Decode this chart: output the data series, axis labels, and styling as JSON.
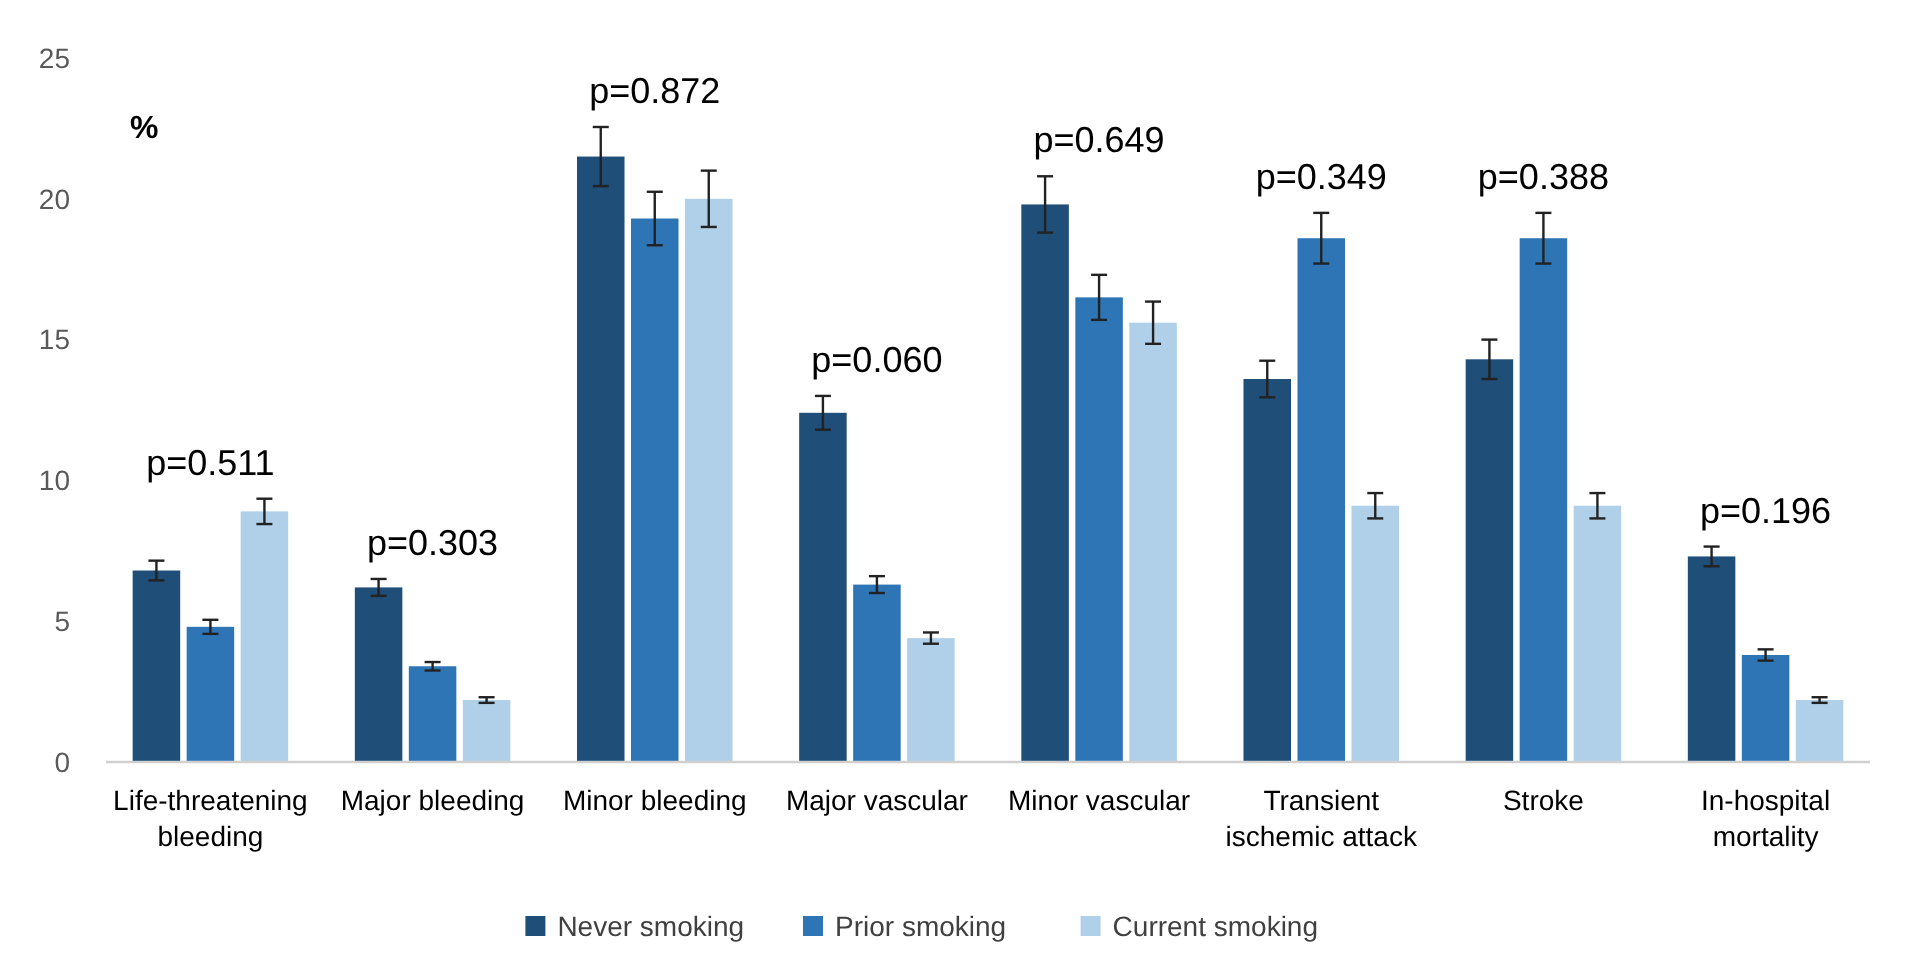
{
  "chart_data": {
    "type": "bar",
    "ylabel": "%",
    "categories": [
      "Life-threatening bleeding",
      "Major bleeding",
      "Minor bleeding",
      "Major vascular",
      "Minor vascular",
      "Transient ischemic attack",
      "Stroke",
      "In-hospital mortality"
    ],
    "series": [
      {
        "name": "Never smoking",
        "color": "#1f4e79",
        "values": [
          6.8,
          6.2,
          21.5,
          12.4,
          19.8,
          13.6,
          14.3,
          7.3
        ],
        "errors": [
          0.35,
          0.3,
          1.05,
          0.6,
          1.0,
          0.65,
          0.7,
          0.35
        ]
      },
      {
        "name": "Prior smoking",
        "color": "#2e75b6",
        "values": [
          4.8,
          3.4,
          19.3,
          6.3,
          16.5,
          18.6,
          18.6,
          3.8
        ],
        "errors": [
          0.25,
          0.15,
          0.95,
          0.3,
          0.8,
          0.9,
          0.9,
          0.2
        ]
      },
      {
        "name": "Current smoking",
        "color": "#afd0e8",
        "values": [
          8.9,
          2.2,
          20.0,
          4.4,
          15.6,
          9.1,
          9.1,
          2.2
        ],
        "errors": [
          0.45,
          0.1,
          1.0,
          0.2,
          0.75,
          0.45,
          0.45,
          0.1
        ]
      }
    ],
    "ylim": [
      0,
      25
    ],
    "yticks": [
      0,
      5,
      10,
      15,
      20,
      25
    ],
    "grid": false,
    "legend": "bottom",
    "annotations": [
      "p=0.511",
      "p=0.303",
      "p=0.872",
      "p=0.060",
      "p=0.649",
      "p=0.349",
      "p=0.388",
      "p=0.196"
    ]
  }
}
